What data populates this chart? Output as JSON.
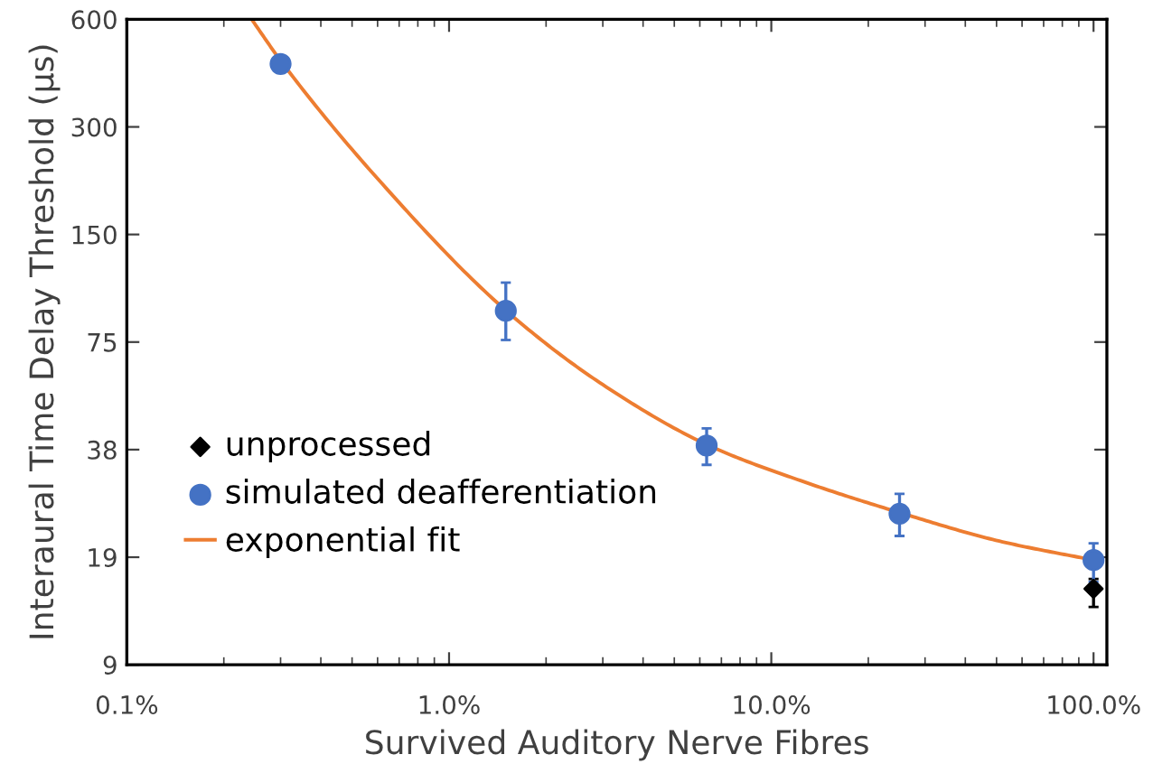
{
  "chart_data": {
    "type": "scatter",
    "xlabel": "Survived Auditory Nerve Fibres",
    "ylabel": "Interaural Time Delay Threshold (µs)",
    "log": "xy",
    "xlim": [
      0.1,
      110
    ],
    "xticks": [
      {
        "value": 0.1,
        "label": "0.1%"
      },
      {
        "value": 1,
        "label": "1.0%"
      },
      {
        "value": 10,
        "label": "10.0%"
      },
      {
        "value": 100,
        "label": "100.0%"
      }
    ],
    "ylim": [
      9.375,
      600
    ],
    "yticks": [
      {
        "value": 9.375,
        "label": "9"
      },
      {
        "value": 18.75,
        "label": "19"
      },
      {
        "value": 37.5,
        "label": "38"
      },
      75,
      150,
      300,
      600
    ],
    "grid": false,
    "legend": "lower left",
    "series": [
      {
        "name": "unprocessed",
        "marker": "diamond",
        "color": "#000000",
        "x": [
          100
        ],
        "values": [
          15.3
        ],
        "errors": [
          [
            13.6,
            16.3
          ]
        ]
      },
      {
        "name": "simulated deafferentiation",
        "marker": "circle",
        "color": "#4472c4",
        "x": [
          0.3,
          1.5,
          6.3,
          25,
          100
        ],
        "values": [
          450,
          91.7,
          38.5,
          24.8,
          18.4
        ],
        "errors": [
          null,
          [
            76,
            110
          ],
          [
            34,
            43
          ],
          [
            21.5,
            28.2
          ],
          [
            16,
            20.5
          ]
        ]
      },
      {
        "name": "exponential fit",
        "type": "line",
        "marker": "none",
        "color": "#ed7d31",
        "x": [
          0.244,
          0.3,
          0.6,
          1.5,
          3,
          6.4,
          12.6,
          25,
          51,
          100
        ],
        "values": [
          600,
          460,
          215,
          92,
          57,
          38.5,
          30.5,
          25,
          20.8,
          18.4
        ]
      }
    ]
  }
}
